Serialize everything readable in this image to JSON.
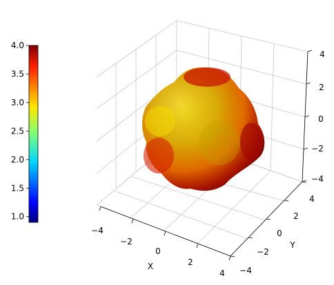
{
  "chart_data": {
    "type": "surface3d",
    "surface": "spherical harmonic-like blob (radius colored by value)",
    "xlabel": "X",
    "ylabel": "Y",
    "zlabel": "",
    "xlim": [
      -4,
      4
    ],
    "ylim": [
      -4,
      4
    ],
    "zlim": [
      -4,
      4
    ],
    "x_ticks": [
      "−4",
      "−2",
      "0",
      "2",
      "4"
    ],
    "y_ticks": [
      "−4",
      "−2",
      "0",
      "2",
      "4"
    ],
    "z_ticks": [
      "−4",
      "−2",
      "0",
      "2",
      "4"
    ],
    "colorbar": {
      "min": 0.9,
      "max": 4.0,
      "ticks": [
        "1.0",
        "1.5",
        "2.0",
        "2.5",
        "3.0",
        "3.5",
        "4.0"
      ],
      "tick_values": [
        1.0,
        1.5,
        2.0,
        2.5,
        3.0,
        3.5,
        4.0
      ],
      "colormap": "jet"
    },
    "grid": true,
    "colors": {
      "grid": "#c8c8c8",
      "pane": "#ffffff",
      "blob_yellow": "#e8d000",
      "blob_orange": "#f08000",
      "blob_red": "#d01000",
      "blob_darkred": "#a00000"
    }
  }
}
